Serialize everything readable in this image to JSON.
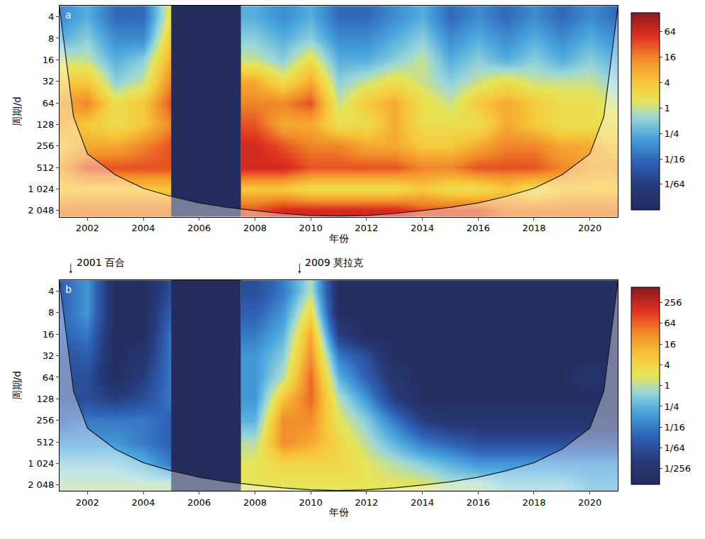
{
  "chart_data": [
    {
      "type": "heatmap",
      "panel": "a",
      "xlabel": "年份",
      "ylabel": "周期/d",
      "xlim": [
        2001,
        2021
      ],
      "xticks": [
        2002,
        2004,
        2006,
        2008,
        2010,
        2012,
        2014,
        2016,
        2018,
        2020
      ],
      "ylim": [
        2.8,
        2500
      ],
      "yticks": [
        4,
        8,
        16,
        32,
        64,
        128,
        256,
        512,
        {
          "value": 1024,
          "label": "1 024"
        },
        {
          "value": 2048,
          "label": "2 048"
        }
      ],
      "x": [
        2001,
        2002,
        2003,
        2004,
        2005,
        2006,
        2007,
        2008,
        2009,
        2010,
        2011,
        2012,
        2013,
        2014,
        2015,
        2016,
        2017,
        2018,
        2019,
        2020,
        2021
      ],
      "y": [
        4,
        8,
        16,
        32,
        64,
        128,
        256,
        512,
        1024,
        2048
      ],
      "z": [
        [
          -3,
          -2,
          -4,
          -4,
          1,
          null,
          null,
          -2,
          -3,
          -2,
          -4,
          -4,
          -3,
          -2,
          -4,
          -3,
          -4,
          -3,
          -4,
          -3,
          -4
        ],
        [
          -2,
          -1,
          -3,
          -3,
          2,
          null,
          null,
          -1,
          -2,
          -1,
          -3,
          -3,
          -2,
          -1,
          -3,
          -2,
          -3,
          -2,
          -3,
          -2,
          -3
        ],
        [
          0,
          0,
          -2,
          -1,
          3,
          null,
          null,
          0,
          -1,
          1,
          -2,
          -2,
          -1,
          0,
          -2,
          -1,
          -2,
          -1,
          -2,
          -1,
          -2
        ],
        [
          2,
          2,
          -1,
          0,
          4,
          null,
          null,
          3,
          1,
          3,
          -1,
          0,
          1,
          0,
          -1,
          0,
          1,
          0,
          0,
          0,
          -1
        ],
        [
          3,
          4,
          1,
          2,
          5,
          null,
          null,
          4,
          4,
          5,
          0,
          2,
          3,
          1,
          0,
          2,
          3,
          2,
          1,
          1,
          0
        ],
        [
          3,
          2,
          1,
          2,
          4,
          null,
          null,
          5,
          3,
          3,
          1,
          1,
          3,
          1,
          1,
          1,
          3,
          2,
          1,
          1,
          1
        ],
        [
          2,
          3,
          3,
          4,
          5,
          null,
          null,
          6,
          5,
          4,
          4,
          3,
          3,
          2,
          2,
          3,
          4,
          4,
          3,
          3,
          2
        ],
        [
          3,
          5,
          5,
          5,
          5,
          null,
          null,
          6,
          6,
          5,
          5,
          5,
          5,
          4,
          4,
          5,
          5,
          5,
          4,
          3,
          3
        ],
        [
          2,
          2,
          2,
          2,
          2,
          null,
          null,
          2,
          2,
          1,
          1,
          1,
          1,
          2,
          1,
          1,
          2,
          1,
          2,
          2,
          2
        ],
        [
          4,
          4,
          4,
          4,
          4,
          null,
          null,
          5,
          6,
          6,
          6,
          6,
          6,
          5,
          5,
          5,
          4,
          4,
          4,
          4,
          4
        ]
      ],
      "zlim": [
        -8,
        7.5
      ],
      "colorbar_ticks": [
        {
          "value": 6,
          "label": "64"
        },
        {
          "value": 4,
          "label": "16"
        },
        {
          "value": 2,
          "label": "4"
        },
        {
          "value": 0,
          "label": "1"
        },
        {
          "value": -2,
          "label": "1/4"
        },
        {
          "value": -4,
          "label": "1/16"
        },
        {
          "value": -6,
          "label": "1/64"
        }
      ],
      "gap": [
        2005,
        2007.5
      ],
      "coi": {
        "x": [
          2001,
          2001.5,
          2002,
          2003,
          2004,
          2005,
          2006,
          2007,
          2008,
          2009,
          2010,
          2011,
          2012,
          2013,
          2014,
          2015,
          2016,
          2017,
          2018,
          2019,
          2020,
          2020.5,
          2021
        ],
        "period": [
          3,
          100,
          330,
          650,
          1000,
          1300,
          1600,
          1850,
          2050,
          2250,
          2400,
          2450,
          2400,
          2250,
          2050,
          1850,
          1600,
          1300,
          1000,
          650,
          330,
          100,
          3
        ]
      }
    },
    {
      "type": "heatmap",
      "panel": "b",
      "xlabel": "年份",
      "ylabel": "周期/d",
      "xlim": [
        2001,
        2021
      ],
      "xticks": [
        2002,
        2004,
        2006,
        2008,
        2010,
        2012,
        2014,
        2016,
        2018,
        2020
      ],
      "ylim": [
        2.8,
        2500
      ],
      "yticks": [
        4,
        8,
        16,
        32,
        64,
        128,
        256,
        512,
        {
          "value": 1024,
          "label": "1 024"
        },
        {
          "value": 2048,
          "label": "2 048"
        }
      ],
      "x": [
        2001,
        2002,
        2003,
        2004,
        2005,
        2006,
        2007,
        2008,
        2009,
        2010,
        2011,
        2012,
        2013,
        2014,
        2015,
        2016,
        2017,
        2018,
        2019,
        2020,
        2021
      ],
      "y": [
        4,
        8,
        16,
        32,
        64,
        128,
        256,
        512,
        1024,
        2048
      ],
      "z": [
        [
          -5,
          -3,
          -9,
          -9,
          -6,
          null,
          null,
          -6,
          -4,
          0,
          -9,
          -9,
          -9,
          -9,
          -9,
          -9,
          -9,
          -9,
          -9,
          -9,
          -9
        ],
        [
          -5,
          -3,
          -9,
          -9,
          -5,
          null,
          null,
          -5,
          -3,
          2,
          -9,
          -9,
          -9,
          -9,
          -9,
          -9,
          -9,
          -9,
          -9,
          -9,
          -9
        ],
        [
          -5,
          -4,
          -9,
          -9,
          -4,
          null,
          null,
          -4,
          -2,
          4,
          -7,
          -9,
          -9,
          -9,
          -9,
          -9,
          -9,
          -9,
          -9,
          -9,
          -9
        ],
        [
          -6,
          -5,
          -9,
          -8,
          -4,
          null,
          null,
          -3,
          -1,
          5,
          -4,
          -6,
          -9,
          -9,
          -9,
          -9,
          -9,
          -9,
          -9,
          -9,
          -9
        ],
        [
          -6,
          -6,
          -9,
          -7,
          -4,
          null,
          null,
          -3,
          0,
          6,
          -2,
          -5,
          -8,
          -9,
          -9,
          -9,
          -9,
          -9,
          -9,
          -8,
          -9
        ],
        [
          -6,
          -6,
          -7,
          -6,
          -4,
          null,
          null,
          -3,
          3,
          6,
          0,
          -3,
          -7,
          -9,
          -9,
          -9,
          -9,
          -9,
          -9,
          -9,
          -9
        ],
        [
          -5,
          -4,
          -4,
          -4,
          -5,
          null,
          null,
          -2,
          5,
          5,
          1,
          -1,
          -4,
          -7,
          -8,
          -8,
          -8,
          -8,
          -8,
          -8,
          -8
        ],
        [
          -3,
          -3,
          -3,
          -4,
          -5,
          null,
          null,
          0,
          5,
          4,
          2,
          0,
          -2,
          -4,
          -5,
          -6,
          -6,
          -6,
          -6,
          -6,
          -6
        ],
        [
          -1,
          -1,
          -1,
          -2,
          -4,
          null,
          null,
          1,
          2,
          2,
          2,
          1,
          0,
          -1,
          -2,
          -3,
          -3,
          -3,
          -3,
          -3,
          -3
        ],
        [
          0,
          0,
          0,
          0,
          0,
          null,
          null,
          1,
          1,
          1,
          1,
          1,
          1,
          1,
          0,
          0,
          -1,
          -1,
          -1,
          -2,
          -2
        ]
      ],
      "zlim": [
        -9.5,
        9.5
      ],
      "colorbar_ticks": [
        {
          "value": 8,
          "label": "256"
        },
        {
          "value": 6,
          "label": "64"
        },
        {
          "value": 4,
          "label": "16"
        },
        {
          "value": 2,
          "label": "4"
        },
        {
          "value": 0,
          "label": "1"
        },
        {
          "value": -2,
          "label": "1/4"
        },
        {
          "value": -4,
          "label": "1/16"
        },
        {
          "value": -6,
          "label": "1/64"
        },
        {
          "value": -8,
          "label": "1/256"
        }
      ],
      "gap": [
        2005,
        2007.5
      ],
      "coi": {
        "x": [
          2001,
          2001.5,
          2002,
          2003,
          2004,
          2005,
          2006,
          2007,
          2008,
          2009,
          2010,
          2011,
          2012,
          2013,
          2014,
          2015,
          2016,
          2017,
          2018,
          2019,
          2020,
          2020.5,
          2021
        ],
        "period": [
          3,
          100,
          330,
          650,
          1000,
          1300,
          1600,
          1850,
          2050,
          2250,
          2400,
          2450,
          2400,
          2250,
          2050,
          1850,
          1600,
          1300,
          1000,
          650,
          330,
          100,
          3
        ]
      },
      "events": [
        {
          "x": 2001.4,
          "label": "2001 百合"
        },
        {
          "x": 2009.6,
          "label": "2009 莫拉克"
        }
      ]
    }
  ]
}
